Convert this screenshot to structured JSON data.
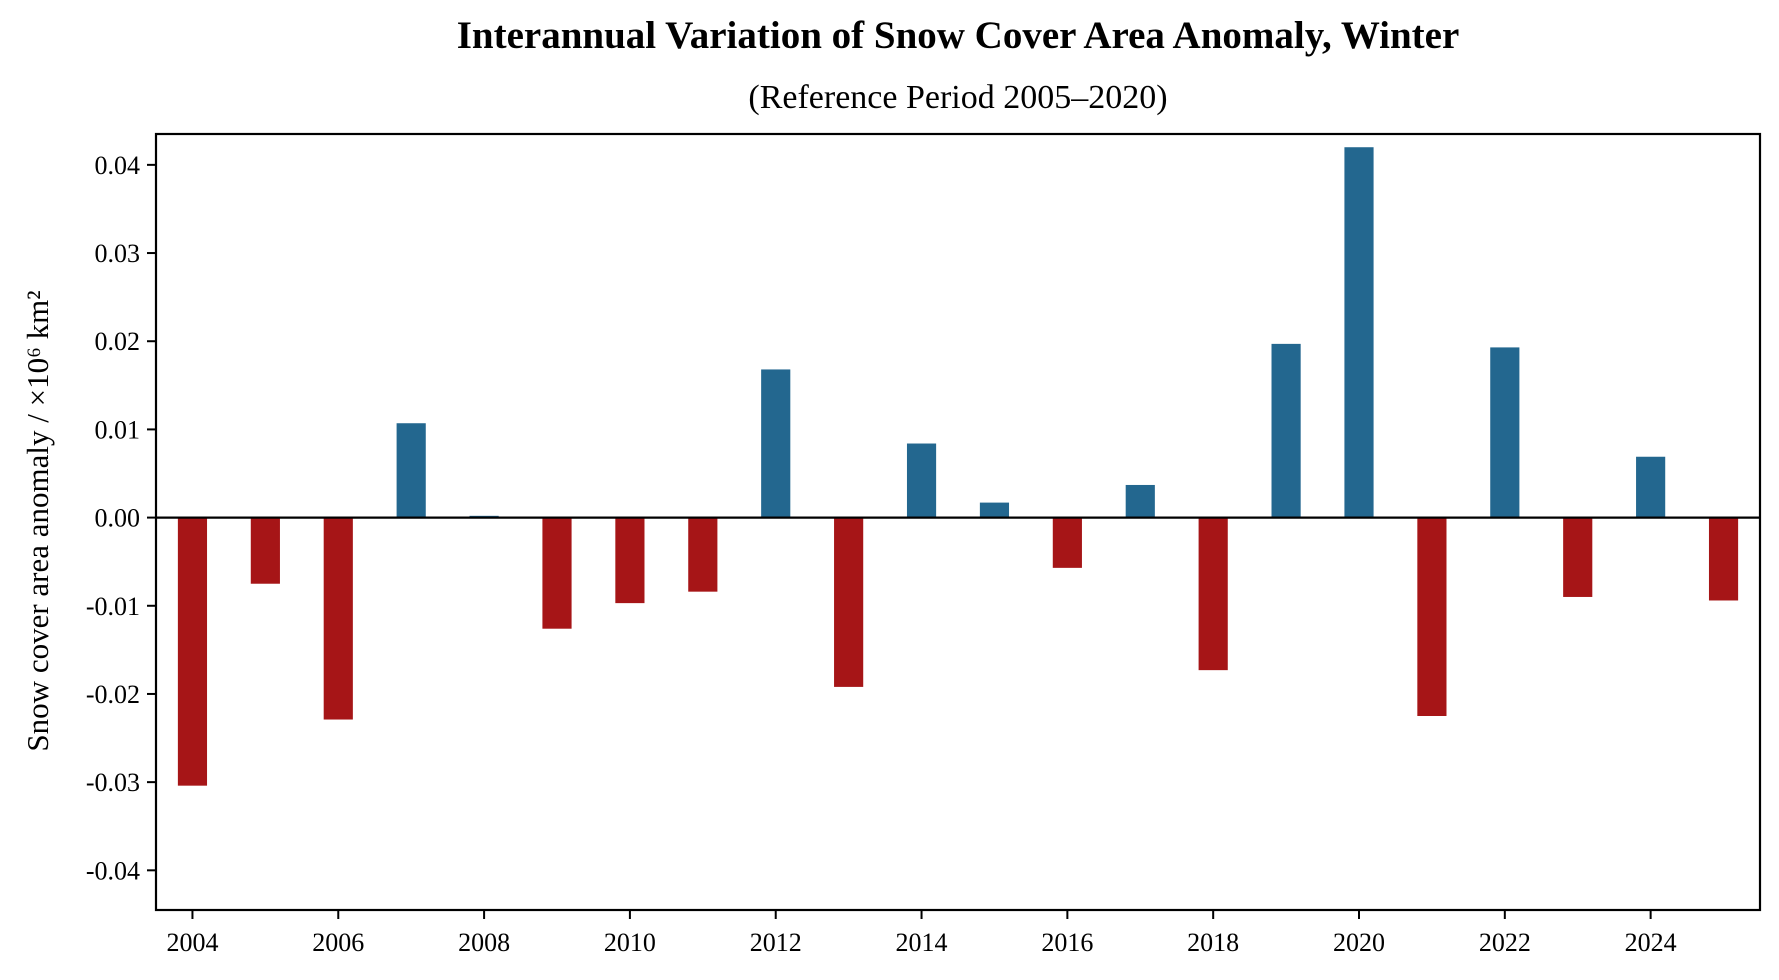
{
  "chart_data": {
    "type": "bar",
    "title": "Interannual Variation of Snow Cover Area Anomaly, Winter",
    "subtitle": "(Reference Period 2005–2020)",
    "xlabel": "",
    "ylabel": "Snow cover area anomaly / ×10⁶ km²",
    "ylim": [
      -0.0445,
      0.0435
    ],
    "xlim": [
      2003.5,
      2025.5
    ],
    "yticks": [
      -0.04,
      -0.03,
      -0.02,
      -0.01,
      0.0,
      0.01,
      0.02,
      0.03,
      0.04
    ],
    "ytick_labels": [
      "-0.04",
      "-0.03",
      "-0.02",
      "-0.01",
      "0.00",
      "0.01",
      "0.02",
      "0.03",
      "0.04"
    ],
    "xticks": [
      2004,
      2006,
      2008,
      2010,
      2012,
      2014,
      2016,
      2018,
      2020,
      2022,
      2024
    ],
    "xtick_labels": [
      "2004",
      "2006",
      "2008",
      "2010",
      "2012",
      "2014",
      "2016",
      "2018",
      "2020",
      "2022",
      "2024"
    ],
    "grid": false,
    "legend": null,
    "colors": {
      "positive": "#23678f",
      "negative": "#a61517",
      "zero_line": "#000000"
    },
    "categories": [
      2004,
      2005,
      2006,
      2007,
      2008,
      2009,
      2010,
      2011,
      2012,
      2013,
      2014,
      2015,
      2016,
      2017,
      2018,
      2019,
      2020,
      2021,
      2022,
      2023,
      2024,
      2025
    ],
    "values": [
      -0.0304,
      -0.0075,
      -0.0229,
      0.0107,
      0.0002,
      -0.0126,
      -0.0097,
      -0.0084,
      0.0168,
      -0.0192,
      0.0084,
      0.0017,
      -0.0057,
      0.0037,
      -0.0173,
      0.0197,
      0.042,
      -0.0225,
      0.0193,
      -0.009,
      0.0069,
      -0.0094
    ]
  }
}
